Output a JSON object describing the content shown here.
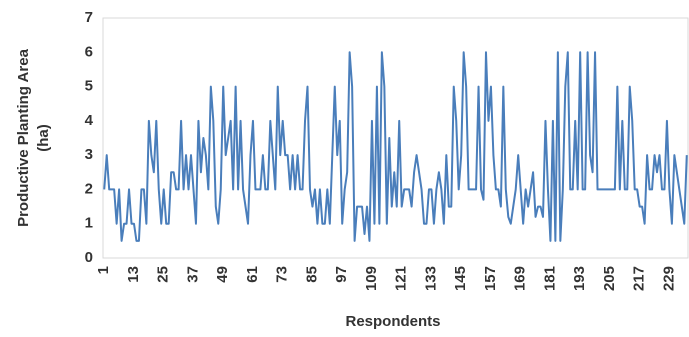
{
  "chart_data": {
    "type": "line",
    "y_label": [
      "Productive Planting Area",
      "(ha)"
    ],
    "x_label": "Respondents",
    "categories": [
      "1",
      null,
      null,
      null,
      null,
      null,
      null,
      null,
      null,
      null,
      null,
      null,
      "13",
      null,
      null,
      null,
      null,
      null,
      null,
      null,
      null,
      null,
      null,
      null,
      "25",
      null,
      null,
      null,
      null,
      null,
      null,
      null,
      null,
      null,
      null,
      null,
      "37",
      null,
      null,
      null,
      null,
      null,
      null,
      null,
      null,
      null,
      null,
      null,
      "49",
      null,
      null,
      null,
      null,
      null,
      null,
      null,
      null,
      null,
      null,
      null,
      "61",
      null,
      null,
      null,
      null,
      null,
      null,
      null,
      null,
      null,
      null,
      null,
      "73",
      null,
      null,
      null,
      null,
      null,
      null,
      null,
      null,
      null,
      null,
      null,
      "85",
      null,
      null,
      null,
      null,
      null,
      null,
      null,
      null,
      null,
      null,
      null,
      "97",
      null,
      null,
      null,
      null,
      null,
      null,
      null,
      null,
      null,
      null,
      null,
      "109",
      null,
      null,
      null,
      null,
      null,
      null,
      null,
      null,
      null,
      null,
      null,
      "121",
      null,
      null,
      null,
      null,
      null,
      null,
      null,
      null,
      null,
      null,
      null,
      "133",
      null,
      null,
      null,
      null,
      null,
      null,
      null,
      null,
      null,
      null,
      null,
      "145",
      null,
      null,
      null,
      null,
      null,
      null,
      null,
      null,
      null,
      null,
      null,
      "157",
      null,
      null,
      null,
      null,
      null,
      null,
      null,
      null,
      null,
      null,
      null,
      "169",
      null,
      null,
      null,
      null,
      null,
      null,
      null,
      null,
      null,
      null,
      null,
      "181",
      null,
      null,
      null,
      null,
      null,
      null,
      null,
      null,
      null,
      null,
      null,
      "193",
      null,
      null,
      null,
      null,
      null,
      null,
      null,
      null,
      null,
      null,
      null,
      "205",
      null,
      null,
      null,
      null,
      null,
      null,
      null,
      null,
      null,
      null,
      null,
      "217",
      null,
      null,
      null,
      null,
      null,
      null,
      null,
      null,
      null,
      null,
      null,
      "229",
      null,
      null,
      null,
      null,
      null,
      null,
      null
    ],
    "series": [
      {
        "color": "#4a7ebb",
        "values": [
          2,
          3,
          2,
          2,
          2,
          1,
          2,
          0.5,
          1,
          1,
          2,
          1,
          1,
          0.5,
          0.5,
          2,
          2,
          1,
          4,
          3,
          2.5,
          4,
          2,
          1,
          2,
          1,
          1,
          2.5,
          2.5,
          2,
          2,
          4,
          2,
          3,
          2,
          3,
          2,
          1,
          4,
          2.5,
          3.5,
          3,
          2,
          5,
          4,
          1.5,
          1,
          2,
          5,
          3,
          3.5,
          4,
          2,
          5,
          2,
          4,
          2,
          1.5,
          1,
          3,
          4,
          2,
          2,
          2,
          3,
          2,
          2,
          4,
          3,
          2,
          5,
          3,
          4,
          3,
          3,
          2,
          3,
          2,
          3,
          2,
          2,
          4,
          5,
          2,
          1.5,
          2,
          1,
          2,
          1,
          1,
          2,
          1,
          3,
          5,
          3,
          4,
          1,
          2,
          2.5,
          6,
          5,
          0.5,
          1.5,
          1.5,
          1.5,
          0.7,
          1.5,
          0.5,
          4,
          1,
          5,
          1,
          6,
          5,
          1,
          3.5,
          1.5,
          2.5,
          1.5,
          4,
          1.5,
          2,
          2,
          2,
          1.5,
          2.5,
          3,
          2.5,
          2,
          1,
          1,
          2,
          2,
          1,
          2,
          2.5,
          2,
          1,
          3,
          1.5,
          1.5,
          5,
          4,
          2,
          3,
          6,
          5,
          2,
          2,
          2,
          2,
          5,
          2,
          1.7,
          6,
          4,
          5,
          3,
          2,
          2,
          1.5,
          5,
          2,
          1.2,
          1,
          1.5,
          2,
          3,
          2,
          1,
          2,
          1.5,
          2,
          2.5,
          1.2,
          1.5,
          1.5,
          1.2,
          4,
          2,
          0.5,
          4,
          0.5,
          6,
          0.5,
          2,
          5,
          6,
          2,
          2,
          4,
          2,
          6,
          2,
          2,
          6,
          3,
          2.5,
          6,
          2,
          2,
          2,
          2,
          2,
          2,
          2,
          2,
          5,
          2,
          4,
          2,
          2,
          5,
          4,
          2,
          2,
          1.5,
          1.5,
          1,
          3,
          2,
          2,
          3,
          2.5,
          3,
          2,
          2,
          4,
          2,
          1,
          3,
          2.5,
          2,
          1.5,
          1,
          3
        ]
      }
    ],
    "ylim": [
      0,
      7
    ],
    "yticks": [
      0,
      1,
      2,
      3,
      4,
      5,
      6,
      7
    ],
    "grid": false
  }
}
